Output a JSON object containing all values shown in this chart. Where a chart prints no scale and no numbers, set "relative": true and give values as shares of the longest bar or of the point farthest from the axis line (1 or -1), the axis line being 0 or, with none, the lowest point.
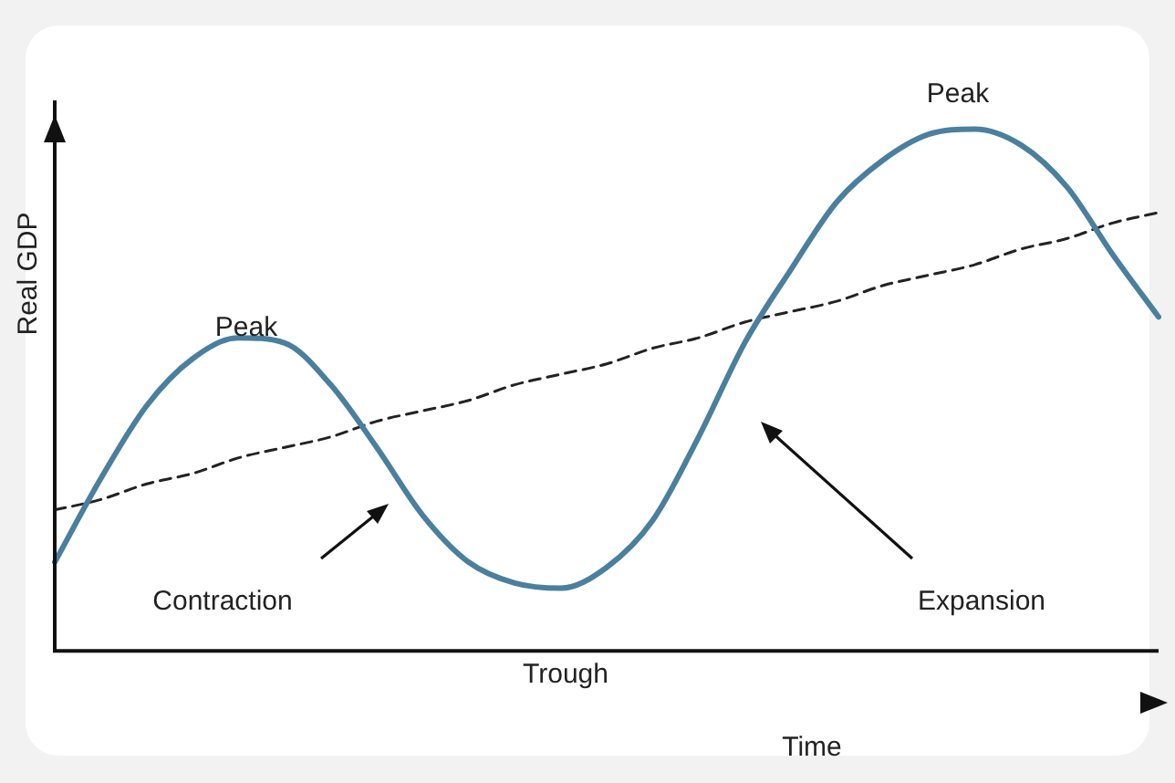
{
  "chart_data": {
    "type": "line",
    "relative": true,
    "xlabel": "Time",
    "ylabel": "Real GDP",
    "legend": false,
    "marker": "none",
    "categories": [
      null,
      null,
      null,
      null,
      null,
      null,
      null,
      null,
      null,
      null,
      null,
      null,
      null,
      null,
      null,
      null,
      null,
      null,
      null,
      null,
      null,
      null,
      null,
      null,
      null
    ],
    "series": [
      {
        "color": "#4a7f9e",
        "line_style": "solid",
        "values": [
          0.17,
          0.33,
          0.47,
          0.56,
          0.6,
          0.59,
          0.51,
          0.39,
          0.26,
          0.17,
          0.13,
          0.12,
          0.16,
          0.25,
          0.41,
          0.59,
          0.73,
          0.86,
          0.94,
          0.99,
          1,
          0.97,
          0.89,
          0.76,
          0.64
        ]
      },
      {
        "color": "#222222",
        "line_style": "dashed",
        "values": [
          0.27,
          0.29,
          0.32,
          0.34,
          0.37,
          0.39,
          0.41,
          0.44,
          0.46,
          0.48,
          0.51,
          0.53,
          0.55,
          0.58,
          0.6,
          0.63,
          0.65,
          0.67,
          0.7,
          0.72,
          0.74,
          0.77,
          0.79,
          0.82,
          0.84
        ]
      }
    ],
    "annotations": [
      "Peak",
      "Contraction",
      "Trough",
      "Expansion",
      "Peak"
    ]
  }
}
